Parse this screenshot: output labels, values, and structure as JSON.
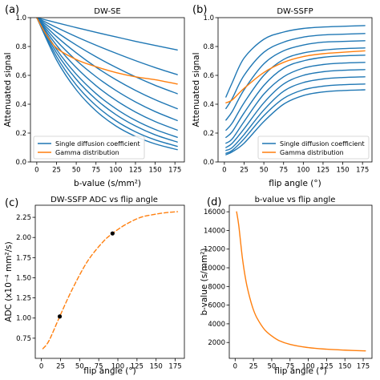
{
  "chart_data": [
    {
      "panel": "(a)",
      "type": "line",
      "title": "DW-SE",
      "xlabel": "b-value (s/mm²)",
      "ylabel": "Attenuated signal",
      "xlim": [
        -8,
        187
      ],
      "ylim": [
        0.0,
        1.0
      ],
      "xticks": [
        0,
        25,
        50,
        75,
        100,
        125,
        150,
        175
      ],
      "yticks": [
        0.0,
        0.2,
        0.4,
        0.6,
        0.8,
        1.0
      ],
      "x_tick_labels": [
        "0",
        "25",
        "50",
        "75",
        "100",
        "125",
        "150",
        "175"
      ],
      "y_tick_labels": [
        "0.0",
        "0.2",
        "0.4",
        "0.6",
        "0.8",
        "1.0"
      ],
      "legend": {
        "placement": "lower-left",
        "entries": [
          "Single diffusion coefficient",
          "Gamma distribution"
        ]
      },
      "series": [
        {
          "color": "#1f77b4",
          "x": [
            0,
            25,
            50,
            75,
            100,
            125,
            150,
            178
          ],
          "y": [
            1.0,
            0.965,
            0.931,
            0.898,
            0.867,
            0.836,
            0.807,
            0.776
          ]
        },
        {
          "color": "#1f77b4",
          "x": [
            0,
            25,
            50,
            75,
            100,
            125,
            150,
            178
          ],
          "y": [
            1.0,
            0.932,
            0.868,
            0.809,
            0.754,
            0.702,
            0.654,
            0.605
          ]
        },
        {
          "color": "#1f77b4",
          "x": [
            0,
            25,
            50,
            75,
            100,
            125,
            150,
            178
          ],
          "y": [
            1.0,
            0.9,
            0.81,
            0.729,
            0.656,
            0.59,
            0.531,
            0.473
          ]
        },
        {
          "color": "#1f77b4",
          "x": [
            0,
            25,
            50,
            75,
            100,
            125,
            150,
            178
          ],
          "y": [
            1.0,
            0.869,
            0.756,
            0.657,
            0.571,
            0.496,
            0.431,
            0.369
          ]
        },
        {
          "color": "#1f77b4",
          "x": [
            0,
            25,
            50,
            75,
            100,
            125,
            150,
            178
          ],
          "y": [
            1.0,
            0.839,
            0.704,
            0.591,
            0.496,
            0.416,
            0.349,
            0.287
          ]
        },
        {
          "color": "#1f77b4",
          "x": [
            0,
            25,
            50,
            75,
            100,
            125,
            150,
            178
          ],
          "y": [
            1.0,
            0.809,
            0.654,
            0.529,
            0.428,
            0.346,
            0.28,
            0.221
          ]
        },
        {
          "color": "#1f77b4",
          "x": [
            0,
            25,
            50,
            75,
            100,
            125,
            150,
            178
          ],
          "y": [
            1.0,
            0.78,
            0.608,
            0.474,
            0.37,
            0.288,
            0.225,
            0.171
          ]
        },
        {
          "color": "#1f77b4",
          "x": [
            0,
            25,
            50,
            75,
            100,
            125,
            150,
            178
          ],
          "y": [
            1.0,
            0.757,
            0.573,
            0.434,
            0.329,
            0.249,
            0.188,
            0.138
          ]
        },
        {
          "color": "#1f77b4",
          "x": [
            0,
            25,
            50,
            75,
            100,
            125,
            150,
            178
          ],
          "y": [
            1.0,
            0.731,
            0.534,
            0.391,
            0.286,
            0.209,
            0.153,
            0.108
          ]
        },
        {
          "color": "#1f77b4",
          "x": [
            0,
            25,
            50,
            75,
            100,
            125,
            150,
            178
          ],
          "y": [
            1.0,
            0.707,
            0.5,
            0.354,
            0.25,
            0.177,
            0.125,
            0.085
          ]
        },
        {
          "color": "#ff7f0e",
          "x": [
            0,
            10,
            25,
            50,
            75,
            100,
            125,
            150,
            178
          ],
          "y": [
            1.0,
            0.9,
            0.79,
            0.71,
            0.66,
            0.62,
            0.59,
            0.57,
            0.54
          ]
        }
      ]
    },
    {
      "panel": "(b)",
      "type": "line",
      "title": "DW-SSFP",
      "xlabel": "flip angle (°)",
      "ylabel": "Attenuated signal",
      "xlim": [
        -8,
        187
      ],
      "ylim": [
        0.0,
        1.0
      ],
      "xticks": [
        0,
        25,
        50,
        75,
        100,
        125,
        150,
        175
      ],
      "yticks": [
        0.0,
        0.2,
        0.4,
        0.6,
        0.8,
        1.0
      ],
      "x_tick_labels": [
        "0",
        "25",
        "50",
        "75",
        "100",
        "125",
        "150",
        "175"
      ],
      "y_tick_labels": [
        "0.0",
        "0.2",
        "0.4",
        "0.6",
        "0.8",
        "1.0"
      ],
      "legend": {
        "placement": "lower-right",
        "entries": [
          "Single diffusion coefficient",
          "Gamma distribution"
        ]
      },
      "series": [
        {
          "color": "#1f77b4",
          "x": [
            2,
            10,
            25,
            50,
            75,
            100,
            125,
            150,
            178
          ],
          "y": [
            0.45,
            0.55,
            0.72,
            0.85,
            0.9,
            0.925,
            0.935,
            0.94,
            0.945
          ]
        },
        {
          "color": "#1f77b4",
          "x": [
            2,
            10,
            25,
            50,
            75,
            100,
            125,
            150,
            178
          ],
          "y": [
            0.37,
            0.44,
            0.6,
            0.76,
            0.83,
            0.865,
            0.88,
            0.885,
            0.89
          ]
        },
        {
          "color": "#1f77b4",
          "x": [
            2,
            10,
            25,
            50,
            75,
            100,
            125,
            150,
            178
          ],
          "y": [
            0.29,
            0.35,
            0.5,
            0.68,
            0.77,
            0.81,
            0.83,
            0.835,
            0.84
          ]
        },
        {
          "color": "#1f77b4",
          "x": [
            2,
            10,
            25,
            50,
            75,
            100,
            125,
            150,
            178
          ],
          "y": [
            0.22,
            0.27,
            0.41,
            0.6,
            0.71,
            0.755,
            0.775,
            0.785,
            0.79
          ]
        },
        {
          "color": "#1f77b4",
          "x": [
            2,
            10,
            25,
            50,
            75,
            100,
            125,
            150,
            178
          ],
          "y": [
            0.17,
            0.21,
            0.34,
            0.53,
            0.65,
            0.7,
            0.725,
            0.735,
            0.74
          ]
        },
        {
          "color": "#1f77b4",
          "x": [
            2,
            10,
            25,
            50,
            75,
            100,
            125,
            150,
            178
          ],
          "y": [
            0.13,
            0.16,
            0.28,
            0.47,
            0.59,
            0.65,
            0.675,
            0.685,
            0.69
          ]
        },
        {
          "color": "#1f77b4",
          "x": [
            2,
            10,
            25,
            50,
            75,
            100,
            125,
            150,
            178
          ],
          "y": [
            0.1,
            0.13,
            0.23,
            0.41,
            0.54,
            0.6,
            0.625,
            0.635,
            0.64
          ]
        },
        {
          "color": "#1f77b4",
          "x": [
            2,
            10,
            25,
            50,
            75,
            100,
            125,
            150,
            178
          ],
          "y": [
            0.08,
            0.1,
            0.19,
            0.36,
            0.49,
            0.55,
            0.575,
            0.585,
            0.59
          ]
        },
        {
          "color": "#1f77b4",
          "x": [
            2,
            10,
            25,
            50,
            75,
            100,
            125,
            150,
            178
          ],
          "y": [
            0.06,
            0.08,
            0.16,
            0.32,
            0.44,
            0.5,
            0.525,
            0.535,
            0.54
          ]
        },
        {
          "color": "#1f77b4",
          "x": [
            2,
            10,
            25,
            50,
            75,
            100,
            125,
            150,
            178
          ],
          "y": [
            0.05,
            0.07,
            0.13,
            0.28,
            0.4,
            0.46,
            0.485,
            0.495,
            0.5
          ]
        },
        {
          "color": "#ff7f0e",
          "x": [
            2,
            10,
            25,
            50,
            75,
            100,
            125,
            150,
            178
          ],
          "y": [
            0.41,
            0.43,
            0.51,
            0.62,
            0.69,
            0.73,
            0.75,
            0.76,
            0.77
          ]
        }
      ]
    },
    {
      "panel": "(c)",
      "type": "line",
      "title": "DW-SSFP ADC vs flip angle",
      "xlabel": "flip angle (°)",
      "ylabel": "ADC (x10⁻⁴ mm²/s)",
      "xlim": [
        -8,
        187
      ],
      "ylim": [
        0.5,
        2.4
      ],
      "xticks": [
        0,
        25,
        50,
        75,
        100,
        125,
        150,
        175
      ],
      "yticks": [
        0.75,
        1.0,
        1.25,
        1.5,
        1.75,
        2.0,
        2.25
      ],
      "x_tick_labels": [
        "0",
        "25",
        "50",
        "75",
        "100",
        "125",
        "150",
        "175"
      ],
      "y_tick_labels": [
        "0.75",
        "1.00",
        "1.25",
        "1.50",
        "1.75",
        "2.00",
        "2.25"
      ],
      "series": [
        {
          "color": "#ff7f0e",
          "dashed": true,
          "x": [
            2,
            10,
            24,
            40,
            60,
            80,
            93,
            110,
            130,
            150,
            165,
            178
          ],
          "y": [
            0.62,
            0.72,
            1.02,
            1.35,
            1.7,
            1.94,
            2.05,
            2.16,
            2.25,
            2.29,
            2.31,
            2.32
          ]
        }
      ],
      "markers": {
        "color": "#000000",
        "x": [
          24,
          93
        ],
        "y": [
          1.02,
          2.05
        ]
      }
    },
    {
      "panel": "(d)",
      "type": "line",
      "title": "b-value vs flip angle",
      "xlabel": "flip angle (°)",
      "ylabel": "b-value (s/mm²)",
      "xlim": [
        -8,
        187
      ],
      "ylim": [
        300,
        16700
      ],
      "xticks": [
        0,
        25,
        50,
        75,
        100,
        125,
        150,
        175
      ],
      "yticks": [
        2000,
        4000,
        6000,
        8000,
        10000,
        12000,
        14000,
        16000
      ],
      "x_tick_labels": [
        "0",
        "25",
        "50",
        "75",
        "100",
        "125",
        "150",
        "175"
      ],
      "y_tick_labels": [
        "2000",
        "4000",
        "6000",
        "8000",
        "10000",
        "12000",
        "14000",
        "16000"
      ],
      "series": [
        {
          "color": "#ff7f0e",
          "x": [
            2,
            5,
            10,
            15,
            20,
            25,
            30,
            40,
            50,
            60,
            75,
            100,
            125,
            150,
            178
          ],
          "y": [
            16000,
            14500,
            11000,
            8500,
            6800,
            5500,
            4600,
            3400,
            2700,
            2200,
            1800,
            1450,
            1280,
            1180,
            1100
          ]
        }
      ]
    }
  ]
}
